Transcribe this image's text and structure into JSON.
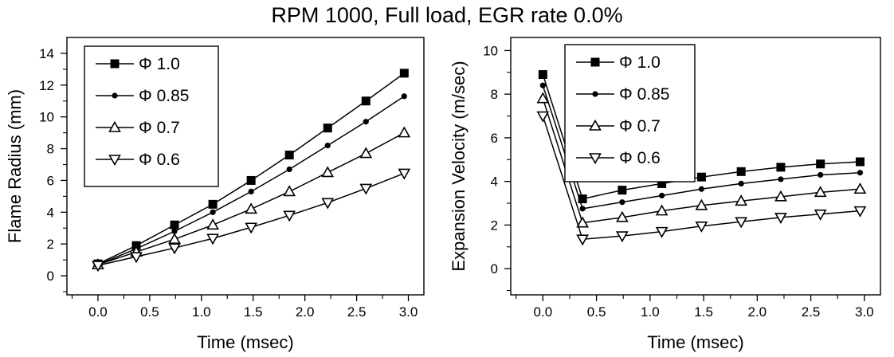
{
  "title": "RPM 1000, Full load, EGR rate 0.0%",
  "chart_data": [
    {
      "type": "line",
      "xlabel": "Time (msec)",
      "ylabel": "Flame Radius (mm)",
      "xlim": [
        -0.3,
        3.15
      ],
      "ylim": [
        -1.2,
        15.0
      ],
      "xticks": [
        "0.0",
        "0.5",
        "1.0",
        "1.5",
        "2.0",
        "2.5",
        "3.0"
      ],
      "xtick_values": [
        0.0,
        0.5,
        1.0,
        1.5,
        2.0,
        2.5,
        3.0
      ],
      "yticks": [
        "0",
        "2",
        "4",
        "6",
        "8",
        "10",
        "12",
        "14"
      ],
      "ytick_values": [
        0,
        2,
        4,
        6,
        8,
        10,
        12,
        14
      ],
      "legend_position": "top-left",
      "x": [
        0.0,
        0.37,
        0.74,
        1.11,
        1.48,
        1.85,
        2.22,
        2.59,
        2.96
      ],
      "series": [
        {
          "name": "Φ 1.0",
          "marker": "square",
          "values": [
            0.75,
            1.9,
            3.2,
            4.5,
            6.0,
            7.6,
            9.3,
            11.0,
            12.75
          ]
        },
        {
          "name": "Φ 0.85",
          "marker": "dot",
          "values": [
            0.7,
            1.7,
            2.8,
            4.0,
            5.3,
            6.7,
            8.2,
            9.7,
            11.3
          ]
        },
        {
          "name": "Φ 0.7",
          "marker": "triangle-up",
          "values": [
            0.7,
            1.5,
            2.3,
            3.2,
            4.2,
            5.3,
            6.5,
            7.7,
            9.0
          ]
        },
        {
          "name": "Φ 0.6",
          "marker": "triangle-down",
          "values": [
            0.65,
            1.2,
            1.75,
            2.35,
            3.05,
            3.8,
            4.6,
            5.5,
            6.45
          ]
        }
      ]
    },
    {
      "type": "line",
      "xlabel": "Time (msec)",
      "ylabel": "Expansion Velocity (m/sec)",
      "xlim": [
        -0.3,
        3.15
      ],
      "ylim": [
        -1.2,
        10.6
      ],
      "xticks": [
        "0.0",
        "0.5",
        "1.0",
        "1.5",
        "2.0",
        "2.5",
        "3.0"
      ],
      "xtick_values": [
        0.0,
        0.5,
        1.0,
        1.5,
        2.0,
        2.5,
        3.0
      ],
      "yticks": [
        "0",
        "2",
        "4",
        "6",
        "8",
        "10"
      ],
      "ytick_values": [
        0,
        2,
        4,
        6,
        8,
        10
      ],
      "legend_position": "top-center",
      "x": [
        0.0,
        0.37,
        0.74,
        1.11,
        1.48,
        1.85,
        2.22,
        2.59,
        2.96
      ],
      "series": [
        {
          "name": "Φ 1.0",
          "marker": "square",
          "values": [
            8.9,
            3.2,
            3.6,
            3.9,
            4.2,
            4.45,
            4.65,
            4.8,
            4.9
          ]
        },
        {
          "name": "Φ 0.85",
          "marker": "dot",
          "values": [
            8.4,
            2.75,
            3.05,
            3.35,
            3.65,
            3.9,
            4.1,
            4.3,
            4.4
          ]
        },
        {
          "name": "Φ 0.7",
          "marker": "triangle-up",
          "values": [
            7.8,
            2.1,
            2.35,
            2.65,
            2.9,
            3.1,
            3.3,
            3.5,
            3.65
          ]
        },
        {
          "name": "Φ 0.6",
          "marker": "triangle-down",
          "values": [
            7.0,
            1.35,
            1.5,
            1.7,
            1.95,
            2.15,
            2.35,
            2.5,
            2.65
          ]
        }
      ]
    }
  ]
}
